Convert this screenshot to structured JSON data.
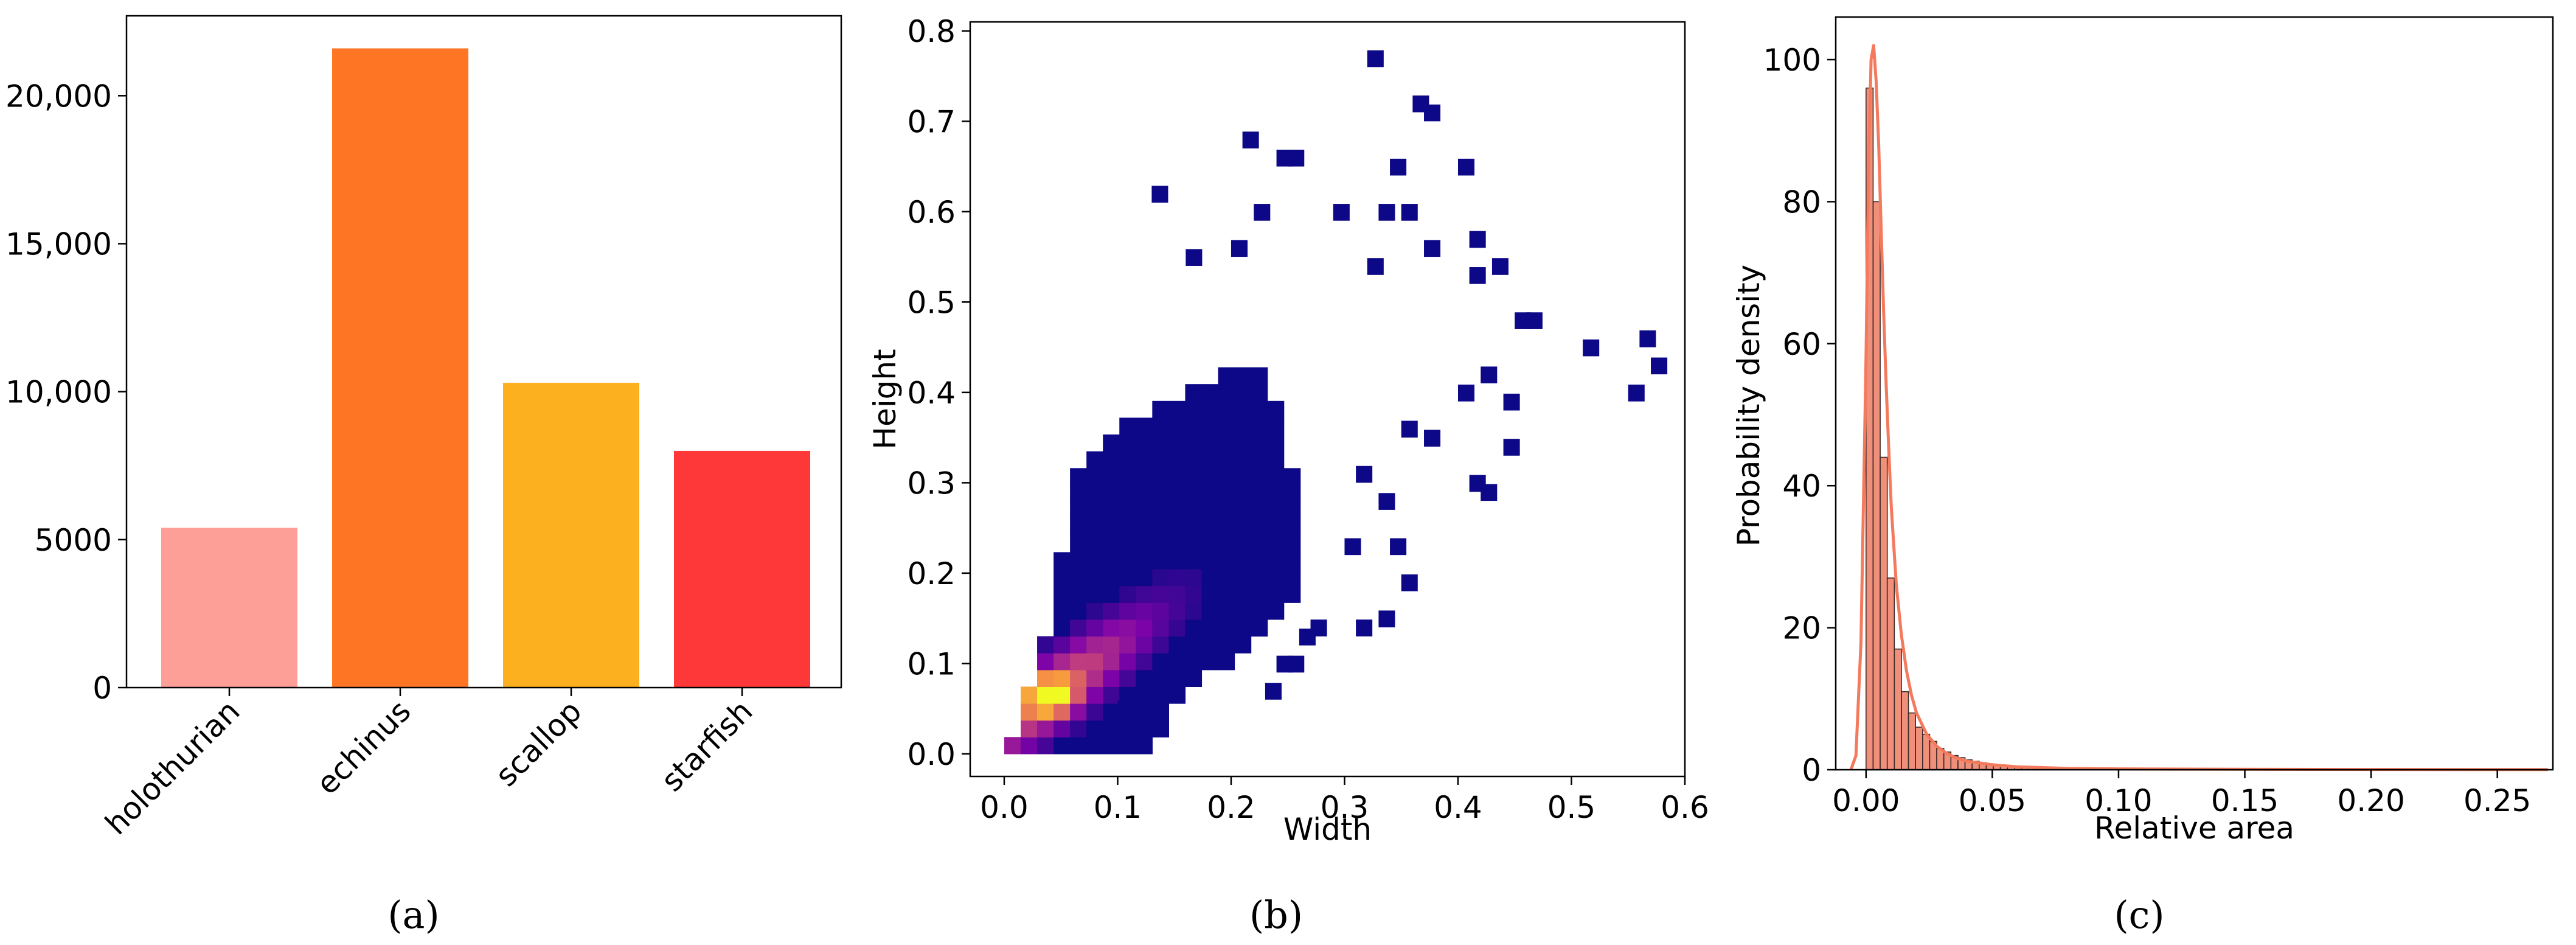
{
  "panels": [
    {
      "label": "(a)"
    },
    {
      "label": "(b)"
    },
    {
      "label": "(c)"
    }
  ],
  "chart_data": [
    {
      "type": "bar",
      "categories": [
        "holothurian",
        "echinus",
        "scallop",
        "starfish"
      ],
      "values": [
        5400,
        21600,
        10300,
        8000
      ],
      "colors": [
        "#fd9f97",
        "#fe7524",
        "#fcb020",
        "#fe3838"
      ],
      "ylim": [
        0,
        22700
      ],
      "yticks": [
        0,
        5000,
        10000,
        15000,
        20000
      ],
      "ytick_labels": [
        "0",
        "5000",
        "10,000",
        "15,000",
        "20,000"
      ],
      "xlabel": "",
      "ylabel": "",
      "title": ""
    },
    {
      "type": "heatmap",
      "xlabel": "Width",
      "ylabel": "Height",
      "xlim": [
        -0.03,
        0.6
      ],
      "ylim": [
        -0.025,
        0.81
      ],
      "xticks": [
        0.0,
        0.1,
        0.2,
        0.3,
        0.4,
        0.5,
        0.6
      ],
      "xtick_labels": [
        "0.0",
        "0.1",
        "0.2",
        "0.3",
        "0.4",
        "0.5",
        "0.6"
      ],
      "yticks": [
        0.0,
        0.1,
        0.2,
        0.3,
        0.4,
        0.5,
        0.6,
        0.7,
        0.8
      ],
      "ytick_labels": [
        "0.0",
        "0.1",
        "0.2",
        "0.3",
        "0.4",
        "0.5",
        "0.6",
        "0.7",
        "0.8"
      ],
      "bin_width": 0.0145,
      "bin_height": 0.0186,
      "colormap": "plasma",
      "dense_core": [
        [
          0.0,
          0.0
        ],
        [
          0.04,
          0.15
        ],
        [
          0.06,
          0.3
        ],
        [
          0.1,
          0.36
        ],
        [
          0.15,
          0.39
        ],
        [
          0.22,
          0.44
        ],
        [
          0.25,
          0.35
        ],
        [
          0.27,
          0.2
        ],
        [
          0.22,
          0.12
        ],
        [
          0.15,
          0.06
        ],
        [
          0.13,
          0.0
        ]
      ],
      "peak": [
        0.04,
        0.065
      ],
      "outliers": [
        [
          0.32,
          0.76
        ],
        [
          0.36,
          0.71
        ],
        [
          0.37,
          0.7
        ],
        [
          0.21,
          0.67
        ],
        [
          0.24,
          0.65
        ],
        [
          0.25,
          0.65
        ],
        [
          0.34,
          0.64
        ],
        [
          0.4,
          0.64
        ],
        [
          0.13,
          0.61
        ],
        [
          0.33,
          0.59
        ],
        [
          0.35,
          0.59
        ],
        [
          0.22,
          0.59
        ],
        [
          0.29,
          0.59
        ],
        [
          0.41,
          0.56
        ],
        [
          0.2,
          0.55
        ],
        [
          0.16,
          0.54
        ],
        [
          0.37,
          0.55
        ],
        [
          0.43,
          0.53
        ],
        [
          0.32,
          0.53
        ],
        [
          0.41,
          0.52
        ],
        [
          0.45,
          0.47
        ],
        [
          0.46,
          0.47
        ],
        [
          0.51,
          0.44
        ],
        [
          0.56,
          0.45
        ],
        [
          0.57,
          0.42
        ],
        [
          0.55,
          0.39
        ],
        [
          0.42,
          0.41
        ],
        [
          0.44,
          0.38
        ],
        [
          0.4,
          0.39
        ],
        [
          0.44,
          0.33
        ],
        [
          0.41,
          0.29
        ],
        [
          0.42,
          0.28
        ],
        [
          0.37,
          0.34
        ],
        [
          0.35,
          0.35
        ],
        [
          0.31,
          0.3
        ],
        [
          0.33,
          0.27
        ],
        [
          0.3,
          0.22
        ],
        [
          0.34,
          0.22
        ],
        [
          0.35,
          0.18
        ],
        [
          0.33,
          0.14
        ],
        [
          0.31,
          0.13
        ],
        [
          0.27,
          0.13
        ],
        [
          0.26,
          0.12
        ],
        [
          0.25,
          0.09
        ],
        [
          0.24,
          0.09
        ],
        [
          0.23,
          0.06
        ],
        [
          0.13,
          0.04
        ],
        [
          0.1,
          0.04
        ]
      ]
    },
    {
      "type": "bar",
      "subtype": "histogram with density curve",
      "xlabel": "Relative area",
      "ylabel": "Probability density",
      "xlim": [
        -0.012,
        0.272
      ],
      "ylim": [
        0,
        106
      ],
      "xticks": [
        0.0,
        0.05,
        0.1,
        0.15,
        0.2,
        0.25
      ],
      "xtick_labels": [
        "0.00",
        "0.05",
        "0.10",
        "0.15",
        "0.20",
        "0.25"
      ],
      "yticks": [
        0,
        20,
        40,
        60,
        80,
        100
      ],
      "ytick_labels": [
        "0",
        "20",
        "40",
        "60",
        "80",
        "100"
      ],
      "bin_start": 0.0,
      "bin_width": 0.0028,
      "bin_values": [
        96,
        80,
        44,
        27,
        17,
        11,
        8,
        6,
        5,
        4,
        3,
        2.5,
        2,
        1.7,
        1.4,
        1.2,
        1.0,
        0.8,
        0.7,
        0.6,
        0.5,
        0.45,
        0.4,
        0.35,
        0.3,
        0.28,
        0.25,
        0.22,
        0.2,
        0.18,
        0.16,
        0.15,
        0.14,
        0.13,
        0.12,
        0.11,
        0.1,
        0.1,
        0.09,
        0.09,
        0.08,
        0.08,
        0.07,
        0.07,
        0.06,
        0.06,
        0.05,
        0.05,
        0.05,
        0.04,
        0.04,
        0.04,
        0.04,
        0.03,
        0.03,
        0.03,
        0.03,
        0.03,
        0.02,
        0.02,
        0.02,
        0.02,
        0.02,
        0.02,
        0.02,
        0.02,
        0.02,
        0.02,
        0.02,
        0.02,
        0.02,
        0.02,
        0.02,
        0.02,
        0.02,
        0.02,
        0.02,
        0.02,
        0.02,
        0.02,
        0.02,
        0.02,
        0.02,
        0.02,
        0.02,
        0.02,
        0.02,
        0.02,
        0.02,
        0.02,
        0.02,
        0.02,
        0.02,
        0.02
      ],
      "kde": {
        "x": [
          -0.006,
          -0.004,
          -0.002,
          0.0,
          0.001,
          0.002,
          0.003,
          0.004,
          0.005,
          0.006,
          0.007,
          0.008,
          0.009,
          0.01,
          0.012,
          0.014,
          0.016,
          0.018,
          0.02,
          0.024,
          0.028,
          0.032,
          0.036,
          0.04,
          0.05,
          0.06,
          0.08,
          0.1,
          0.15,
          0.2,
          0.27
        ],
        "y": [
          0,
          2,
          18,
          58,
          85,
          100,
          102,
          97,
          88,
          76,
          64,
          54,
          45,
          37,
          26,
          19,
          14,
          10.5,
          8,
          5,
          3.3,
          2.3,
          1.6,
          1.2,
          0.7,
          0.4,
          0.2,
          0.12,
          0.06,
          0.03,
          0.02
        ]
      },
      "bar_color": "#ef7d63",
      "curve_color": "#f47a5e"
    }
  ]
}
